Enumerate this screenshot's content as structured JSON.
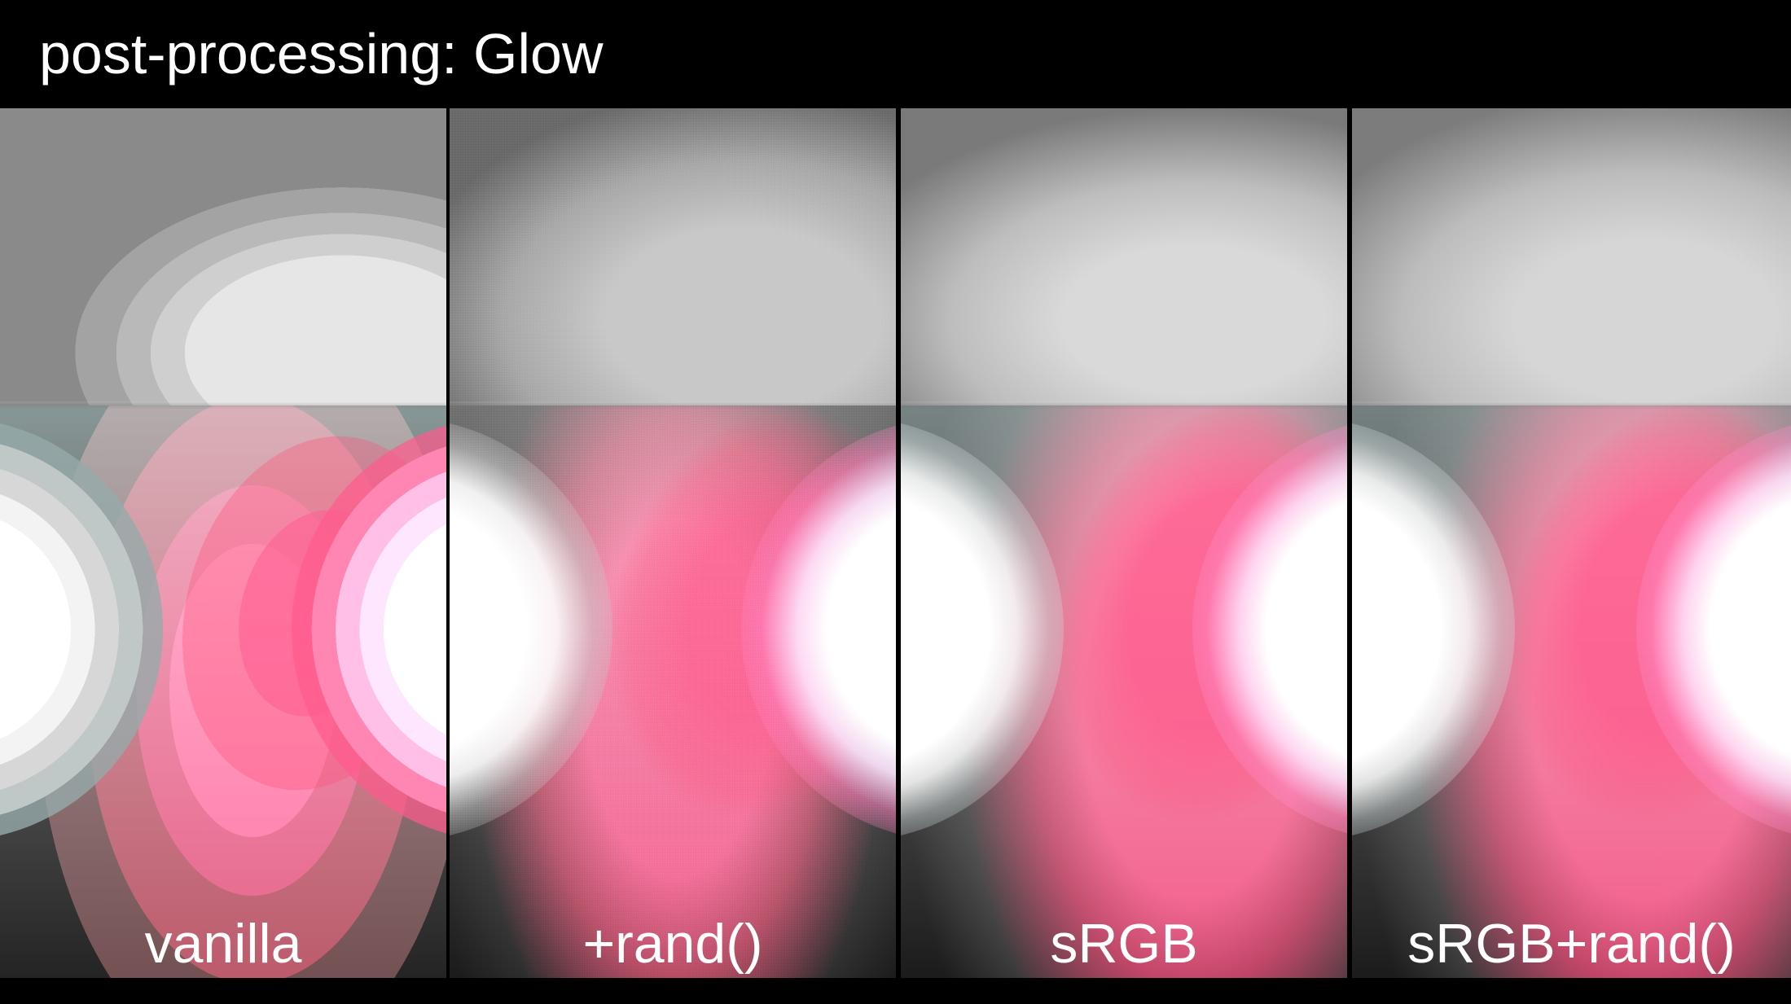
{
  "title": "post-processing: Glow",
  "panels": [
    {
      "label": "vanilla"
    },
    {
      "label": "+rand()"
    },
    {
      "label": "sRGB"
    },
    {
      "label": "sRGB+rand()"
    }
  ],
  "colors": {
    "background": "#000000",
    "text": "#ffffff",
    "glow_pink": "#ff5a8c",
    "glow_white": "#ffffff"
  }
}
